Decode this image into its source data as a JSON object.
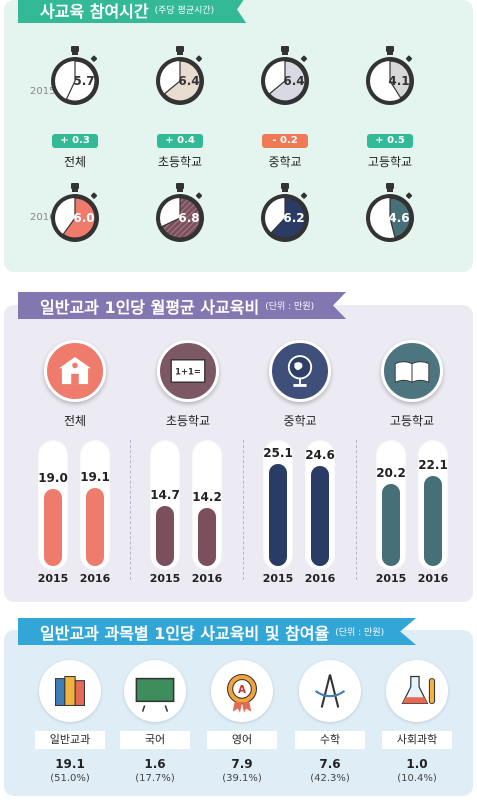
{
  "section1": {
    "title": "사교육 참여시간",
    "unit": "(주당 평균시간)",
    "year_a": "2015",
    "year_b": "2016"
  },
  "section2": {
    "title": "일반교과 1인당 월평균 사교육비",
    "unit": "(단위 : 만원)"
  },
  "section3": {
    "title": "일반교과 과목별 1인당 사교육비 및 참여율",
    "unit": "(단위 : 만원)"
  },
  "colors": {
    "green": "#33b996",
    "purple": "#8277b0",
    "blue": "#33a6d8",
    "all": "#ef7b6c",
    "elem": "#7c4f5c",
    "mid": "#2a3c66",
    "high": "#476f78"
  },
  "chart_data": [
    {
      "type": "pie",
      "title": "사교육 참여시간",
      "unit": "주당 평균시간",
      "categories": [
        "전체",
        "초등학교",
        "중학교",
        "고등학교"
      ],
      "series": [
        {
          "name": "2015",
          "values": [
            5.7,
            6.4,
            6.4,
            4.1
          ]
        },
        {
          "name": "2016",
          "values": [
            6.0,
            6.8,
            6.2,
            4.6
          ]
        }
      ],
      "changes": [
        "+ 0.3",
        "+ 0.4",
        "- 0.2",
        "+ 0.5"
      ]
    },
    {
      "type": "bar",
      "title": "일반교과 1인당 월평균 사교육비",
      "unit": "만원",
      "categories": [
        "전체",
        "초등학교",
        "중학교",
        "고등학교"
      ],
      "series": [
        {
          "name": "2015",
          "values": [
            19.0,
            14.7,
            25.1,
            20.2
          ]
        },
        {
          "name": "2016",
          "values": [
            19.1,
            14.2,
            24.6,
            22.1
          ]
        }
      ],
      "ylim": [
        0,
        30
      ]
    },
    {
      "type": "table",
      "title": "일반교과 과목별 1인당 사교육비 및 참여율",
      "unit": "만원",
      "categories": [
        "일반교과",
        "국어",
        "영어",
        "수학",
        "사회과학"
      ],
      "values": [
        19.1,
        1.6,
        7.9,
        7.6,
        1.0
      ],
      "participation": [
        "(51.0%)",
        "(17.7%)",
        "(39.1%)",
        "(42.3%)",
        "(10.4%)"
      ],
      "value_labels": [
        "19.1",
        "1.6",
        "7.9",
        "7.6",
        "1.0"
      ]
    }
  ]
}
